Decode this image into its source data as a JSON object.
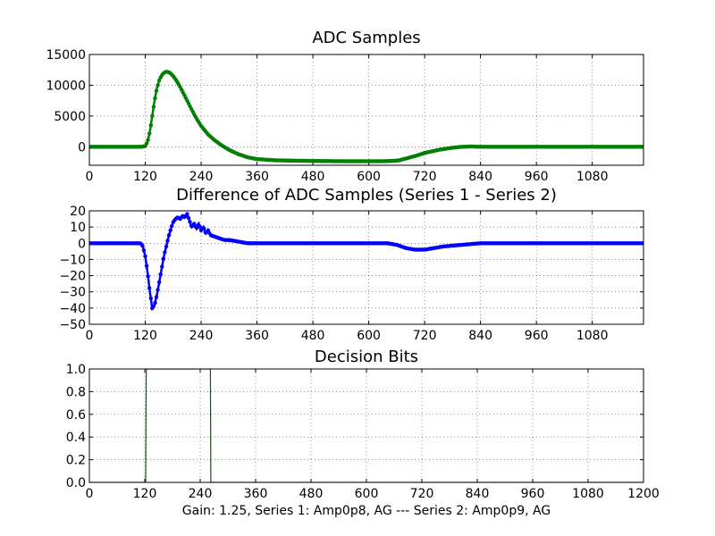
{
  "figure_caption": "Gain: 1.25, Series 1: Amp0p8, AG --- Series 2: Amp0p9, AG",
  "chart_data": [
    {
      "type": "line",
      "title": "ADC Samples",
      "xlabel": "",
      "ylabel": "",
      "xlim": [
        0,
        1190
      ],
      "ylim": [
        -3000,
        15000
      ],
      "xticks": [
        0,
        120,
        240,
        360,
        480,
        600,
        720,
        840,
        960,
        1080
      ],
      "yticks": [
        0,
        5000,
        10000,
        15000
      ],
      "grid": true,
      "marker": "dot",
      "color": "#007f00",
      "series": [
        {
          "name": "ADC Samples",
          "x": [
            0,
            100,
            115,
            120,
            125,
            130,
            135,
            140,
            145,
            150,
            155,
            160,
            165,
            170,
            175,
            180,
            185,
            190,
            200,
            210,
            220,
            230,
            240,
            255,
            270,
            285,
            300,
            320,
            340,
            360,
            400,
            480,
            560,
            620,
            650,
            665,
            680,
            700,
            720,
            750,
            780,
            800,
            820,
            840,
            900,
            1000,
            1100,
            1190
          ],
          "y": [
            0,
            0,
            20,
            150,
            800,
            2500,
            5000,
            7500,
            9500,
            10800,
            11600,
            12000,
            12200,
            12150,
            11900,
            11500,
            11000,
            10400,
            9000,
            7500,
            6000,
            4600,
            3400,
            2000,
            1000,
            200,
            -500,
            -1200,
            -1700,
            -2000,
            -2200,
            -2300,
            -2350,
            -2350,
            -2300,
            -2200,
            -1900,
            -1500,
            -1000,
            -500,
            -150,
            0,
            50,
            0,
            0,
            0,
            0,
            0
          ]
        }
      ]
    },
    {
      "type": "line",
      "title": "Difference of ADC Samples (Series 1 - Series 2)",
      "xlabel": "",
      "ylabel": "",
      "xlim": [
        0,
        1190
      ],
      "ylim": [
        -50,
        20
      ],
      "xticks": [
        0,
        120,
        240,
        360,
        480,
        600,
        720,
        840,
        960,
        1080
      ],
      "yticks": [
        -50,
        -40,
        -30,
        -20,
        -10,
        0,
        10,
        20
      ],
      "grid": true,
      "marker": "dot",
      "color": "#0000ff",
      "series": [
        {
          "name": "Difference",
          "x": [
            0,
            50,
            100,
            110,
            115,
            120,
            125,
            130,
            135,
            140,
            145,
            150,
            155,
            160,
            165,
            170,
            175,
            180,
            185,
            190,
            195,
            200,
            205,
            210,
            215,
            220,
            225,
            230,
            235,
            240,
            245,
            250,
            255,
            260,
            270,
            280,
            290,
            300,
            320,
            340,
            360,
            380,
            420,
            480,
            540,
            600,
            640,
            660,
            680,
            700,
            720,
            740,
            760,
            800,
            840,
            900,
            960,
            1020,
            1080,
            1140,
            1190
          ],
          "y": [
            0,
            0,
            0,
            0,
            -2,
            -8,
            -18,
            -30,
            -40,
            -38,
            -32,
            -24,
            -16,
            -8,
            -2,
            4,
            9,
            13,
            15,
            16,
            15,
            17,
            16,
            18,
            14,
            10,
            12,
            9,
            12,
            8,
            10,
            6,
            8,
            5,
            4,
            3,
            2,
            2,
            1,
            0,
            0,
            0,
            0,
            0,
            0,
            0,
            0,
            -1,
            -3,
            -4,
            -4,
            -3,
            -2,
            -1,
            0,
            0,
            0,
            0,
            0,
            0,
            0
          ]
        }
      ]
    },
    {
      "type": "line",
      "title": "Decision Bits",
      "xlabel": "",
      "ylabel": "",
      "xlim": [
        0,
        1200
      ],
      "ylim": [
        0,
        1
      ],
      "xticks": [
        0,
        120,
        240,
        360,
        480,
        600,
        720,
        840,
        960,
        1080,
        1200
      ],
      "yticks": [
        0.0,
        0.2,
        0.4,
        0.6,
        0.8,
        1.0
      ],
      "grid": true,
      "marker": "none",
      "color": "#006400",
      "series": [
        {
          "name": "Decision",
          "x": [
            0,
            122,
            123,
            262,
            263,
            1200
          ],
          "y": [
            0,
            0,
            1,
            1,
            0,
            0
          ]
        }
      ]
    }
  ]
}
